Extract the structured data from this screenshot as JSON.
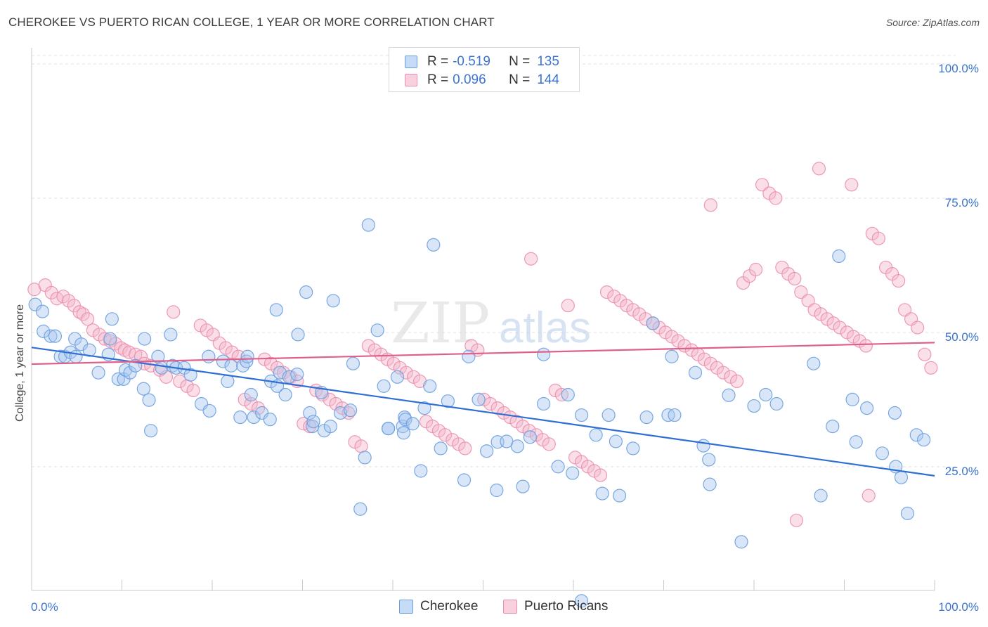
{
  "header": {
    "title": "CHEROKEE VS PUERTO RICAN COLLEGE, 1 YEAR OR MORE CORRELATION CHART",
    "source": "Source: ZipAtlas.com"
  },
  "watermark": {
    "part1": "ZIP",
    "part2": "atlas"
  },
  "legend_top": {
    "rows": [
      {
        "r_label": "R =",
        "r_value": "-0.519",
        "n_label": "N =",
        "n_value": "135"
      },
      {
        "r_label": "R =",
        "r_value": "0.096",
        "n_label": "N =",
        "n_value": "144"
      }
    ]
  },
  "legend_bottom": {
    "items": [
      "Cherokee",
      "Puerto Ricans"
    ]
  },
  "colors": {
    "cherokee_fill": "#a8c8f0",
    "cherokee_stroke": "#6a9ee0",
    "cherokee_line": "#2f6fd4",
    "pr_fill": "#f5b8cc",
    "pr_stroke": "#eb8fae",
    "pr_line": "#e0608c",
    "tick_blue": "#3a74d0",
    "grid": "#e2e2e2"
  },
  "chart_data": {
    "type": "scatter",
    "title": "CHEROKEE VS PUERTO RICAN COLLEGE, 1 YEAR OR MORE CORRELATION CHART",
    "xlabel": "",
    "ylabel": "College, 1 year or more",
    "xlim": [
      0,
      100
    ],
    "ylim": [
      0,
      105
    ],
    "x_tick_labels": [
      "0.0%",
      "100.0%"
    ],
    "y_ticks": [
      25,
      50,
      75,
      100
    ],
    "y_tick_labels": [
      "25.0%",
      "50.0%",
      "75.0%",
      "100.0%"
    ],
    "grid": true,
    "legend_position": "top-center",
    "series": [
      {
        "name": "Cherokee",
        "r": -0.519,
        "n": 135,
        "trend": {
          "x": [
            0,
            100
          ],
          "y": [
            48.0,
            24.1
          ]
        },
        "points": [
          [
            0.4,
            56
          ],
          [
            1.2,
            54.7
          ],
          [
            1.3,
            51
          ],
          [
            2.1,
            50.1
          ],
          [
            2.6,
            50.1
          ],
          [
            3.2,
            46.3
          ],
          [
            3.7,
            46.3
          ],
          [
            4.3,
            47.1
          ],
          [
            4.8,
            49.6
          ],
          [
            4.9,
            46.3
          ],
          [
            5.5,
            48.6
          ],
          [
            6.4,
            47.5
          ],
          [
            7.4,
            43.3
          ],
          [
            8.5,
            46.7
          ],
          [
            8.7,
            49.6
          ],
          [
            8.9,
            53.3
          ],
          [
            9.6,
            42.1
          ],
          [
            10.2,
            42.1
          ],
          [
            10.4,
            43.8
          ],
          [
            10.9,
            43.3
          ],
          [
            11.5,
            44.6
          ],
          [
            12.4,
            40.3
          ],
          [
            12.5,
            49.6
          ],
          [
            13,
            38.2
          ],
          [
            13.2,
            32.5
          ],
          [
            14,
            46.3
          ],
          [
            14.4,
            44.2
          ],
          [
            15.4,
            50.4
          ],
          [
            15.6,
            44.6
          ],
          [
            16,
            44.2
          ],
          [
            16.9,
            44.2
          ],
          [
            17.6,
            42.9
          ],
          [
            18.8,
            37.5
          ],
          [
            19.6,
            46.3
          ],
          [
            19.7,
            36.2
          ],
          [
            21.2,
            45.4
          ],
          [
            21.7,
            41.7
          ],
          [
            22.1,
            44.6
          ],
          [
            23.1,
            35
          ],
          [
            23.4,
            44.6
          ],
          [
            23.8,
            45.4
          ],
          [
            23.9,
            46.3
          ],
          [
            24.3,
            39.2
          ],
          [
            24.6,
            35
          ],
          [
            25.5,
            35.8
          ],
          [
            26.4,
            34.6
          ],
          [
            26.5,
            41.7
          ],
          [
            27.1,
            55
          ],
          [
            27.2,
            40.8
          ],
          [
            27.5,
            43.3
          ],
          [
            28.1,
            39.2
          ],
          [
            28.5,
            42.5
          ],
          [
            29.4,
            43
          ],
          [
            29.5,
            50.4
          ],
          [
            30.4,
            58.3
          ],
          [
            30.8,
            35.8
          ],
          [
            31.1,
            33.3
          ],
          [
            31.2,
            34.2
          ],
          [
            32.1,
            39.6
          ],
          [
            32.4,
            32.5
          ],
          [
            33.1,
            33.3
          ],
          [
            33.4,
            56.7
          ],
          [
            34.2,
            35.8
          ],
          [
            35.3,
            36.3
          ],
          [
            35.6,
            45
          ],
          [
            36.4,
            17.9
          ],
          [
            36.9,
            27.5
          ],
          [
            37.3,
            70.8
          ],
          [
            38.3,
            51.2
          ],
          [
            39,
            40.8
          ],
          [
            39.5,
            32.9
          ],
          [
            39.5,
            32.9
          ],
          [
            40.5,
            42.5
          ],
          [
            41.1,
            33.3
          ],
          [
            41.2,
            32.1
          ],
          [
            41.3,
            35
          ],
          [
            41.4,
            34.6
          ],
          [
            42.2,
            33.8
          ],
          [
            43.1,
            25
          ],
          [
            43.5,
            36.7
          ],
          [
            44.1,
            40.8
          ],
          [
            44.5,
            67.1
          ],
          [
            45.3,
            29.2
          ],
          [
            46.1,
            38
          ],
          [
            47.9,
            23.3
          ],
          [
            48.4,
            46.3
          ],
          [
            49.5,
            38.3
          ],
          [
            50.4,
            28.7
          ],
          [
            51.5,
            21.4
          ],
          [
            51.6,
            30.4
          ],
          [
            52.6,
            30.5
          ],
          [
            53.8,
            29.6
          ],
          [
            54.4,
            22.1
          ],
          [
            55.2,
            31.3
          ],
          [
            56.7,
            37.5
          ],
          [
            56.7,
            46.7
          ],
          [
            58.3,
            25.8
          ],
          [
            59.4,
            39.2
          ],
          [
            59.9,
            24.6
          ],
          [
            60.9,
            35.4
          ],
          [
            62.5,
            31.7
          ],
          [
            63.2,
            20.8
          ],
          [
            63.9,
            35.4
          ],
          [
            64.7,
            30.5
          ],
          [
            65.1,
            20.4
          ],
          [
            66.6,
            29.2
          ],
          [
            68.1,
            35
          ],
          [
            68.8,
            52.5
          ],
          [
            70.5,
            35.4
          ],
          [
            70.9,
            46.3
          ],
          [
            71.2,
            35.4
          ],
          [
            73.5,
            43.3
          ],
          [
            74.4,
            29.7
          ],
          [
            75,
            27.1
          ],
          [
            75.1,
            22.5
          ],
          [
            77.2,
            39.1
          ],
          [
            78.6,
            11.8
          ],
          [
            80,
            37.1
          ],
          [
            81.3,
            39.2
          ],
          [
            82.5,
            37.5
          ],
          [
            86.6,
            45
          ],
          [
            87.4,
            20.4
          ],
          [
            88.7,
            33.3
          ],
          [
            89.4,
            65
          ],
          [
            90.9,
            38.3
          ],
          [
            91.3,
            30.4
          ],
          [
            92.5,
            36.7
          ],
          [
            94.2,
            28.3
          ],
          [
            95.6,
            35.8
          ],
          [
            96.3,
            23.8
          ],
          [
            98,
            31.7
          ],
          [
            98.8,
            30.8
          ],
          [
            60.9,
            0.8
          ],
          [
            95.7,
            25.8
          ],
          [
            97,
            17.1
          ]
        ]
      },
      {
        "name": "Puerto Ricans",
        "r": 0.096,
        "n": 144,
        "trend": {
          "x": [
            0,
            100
          ],
          "y": [
            44.9,
            48.9
          ]
        },
        "points": [
          [
            0.3,
            58.8
          ],
          [
            1.5,
            59.6
          ],
          [
            2.2,
            58.2
          ],
          [
            2.8,
            57.1
          ],
          [
            3.5,
            57.5
          ],
          [
            4.1,
            56.7
          ],
          [
            4.7,
            55.8
          ],
          [
            5.3,
            54.6
          ],
          [
            5.7,
            54.2
          ],
          [
            6.2,
            53.3
          ],
          [
            6.8,
            51.2
          ],
          [
            7.5,
            50.4
          ],
          [
            8.1,
            49.6
          ],
          [
            8.7,
            49.2
          ],
          [
            9.3,
            48.7
          ],
          [
            9.9,
            47.9
          ],
          [
            10.3,
            47.5
          ],
          [
            10.8,
            47.1
          ],
          [
            11.5,
            46.7
          ],
          [
            12.1,
            46.3
          ],
          [
            12.5,
            45
          ],
          [
            13.2,
            44.6
          ],
          [
            14.2,
            43.8
          ],
          [
            14.9,
            42.5
          ],
          [
            15.7,
            54.6
          ],
          [
            16.4,
            41.7
          ],
          [
            17.2,
            40.8
          ],
          [
            17.9,
            40
          ],
          [
            18.7,
            52.1
          ],
          [
            19.4,
            51.2
          ],
          [
            20.1,
            50.4
          ],
          [
            20.8,
            48.8
          ],
          [
            21.5,
            47.9
          ],
          [
            22.2,
            47.1
          ],
          [
            22.9,
            46.3
          ],
          [
            23.6,
            38.3
          ],
          [
            24.3,
            37.5
          ],
          [
            25.1,
            36.7
          ],
          [
            25.8,
            45.8
          ],
          [
            26.5,
            45
          ],
          [
            27.2,
            44.2
          ],
          [
            27.9,
            43.3
          ],
          [
            28.7,
            42.5
          ],
          [
            29.4,
            41.7
          ],
          [
            30.1,
            33.8
          ],
          [
            30.8,
            33.3
          ],
          [
            31.5,
            40
          ],
          [
            32.2,
            39.2
          ],
          [
            33,
            38.3
          ],
          [
            33.7,
            37.5
          ],
          [
            34.4,
            36.7
          ],
          [
            35.1,
            35.8
          ],
          [
            35.8,
            30.4
          ],
          [
            36.5,
            29.6
          ],
          [
            37.3,
            48.3
          ],
          [
            38,
            47.5
          ],
          [
            38.7,
            46.7
          ],
          [
            39.4,
            45.8
          ],
          [
            40.1,
            45
          ],
          [
            40.8,
            44.2
          ],
          [
            41.5,
            43.3
          ],
          [
            42.3,
            42.5
          ],
          [
            43,
            41.7
          ],
          [
            43.7,
            34.2
          ],
          [
            44.4,
            33.3
          ],
          [
            45.1,
            32.5
          ],
          [
            45.8,
            31.7
          ],
          [
            46.6,
            30.8
          ],
          [
            47.3,
            30
          ],
          [
            48,
            29.2
          ],
          [
            48.7,
            48.3
          ],
          [
            49.4,
            47.5
          ],
          [
            50.1,
            38.3
          ],
          [
            50.8,
            37.5
          ],
          [
            51.6,
            36.7
          ],
          [
            52.3,
            35.8
          ],
          [
            53,
            35
          ],
          [
            53.7,
            34.2
          ],
          [
            54.4,
            33.3
          ],
          [
            55.1,
            32.5
          ],
          [
            55.9,
            31.7
          ],
          [
            56.6,
            30.8
          ],
          [
            57.3,
            30
          ],
          [
            58,
            40
          ],
          [
            58.7,
            39.2
          ],
          [
            59.4,
            55.8
          ],
          [
            60.2,
            27.5
          ],
          [
            60.9,
            26.7
          ],
          [
            61.6,
            25.8
          ],
          [
            62.3,
            25
          ],
          [
            63,
            24.2
          ],
          [
            63.7,
            58.3
          ],
          [
            64.5,
            57.5
          ],
          [
            65.2,
            56.7
          ],
          [
            65.9,
            55.8
          ],
          [
            66.6,
            55
          ],
          [
            67.3,
            54.2
          ],
          [
            68,
            53.3
          ],
          [
            68.8,
            52.5
          ],
          [
            69.5,
            51.7
          ],
          [
            70.2,
            50.8
          ],
          [
            70.9,
            50
          ],
          [
            71.6,
            49.2
          ],
          [
            72.3,
            48.3
          ],
          [
            73.1,
            47.5
          ],
          [
            73.8,
            46.7
          ],
          [
            74.5,
            45.8
          ],
          [
            75.2,
            45
          ],
          [
            75.9,
            44.2
          ],
          [
            76.6,
            43.3
          ],
          [
            77.4,
            42.5
          ],
          [
            78.1,
            41.7
          ],
          [
            78.8,
            60
          ],
          [
            79.5,
            61.3
          ],
          [
            80.2,
            62.5
          ],
          [
            80.9,
            78.3
          ],
          [
            81.7,
            76.7
          ],
          [
            82.4,
            75.8
          ],
          [
            83.1,
            62.9
          ],
          [
            83.8,
            61.7
          ],
          [
            84.5,
            60.8
          ],
          [
            85.2,
            58.3
          ],
          [
            86,
            56.7
          ],
          [
            86.7,
            55
          ],
          [
            87.4,
            54.2
          ],
          [
            88.1,
            53.3
          ],
          [
            88.8,
            52.5
          ],
          [
            89.5,
            51.7
          ],
          [
            90.3,
            50.8
          ],
          [
            91,
            50
          ],
          [
            91.7,
            49.2
          ],
          [
            92.4,
            48.3
          ],
          [
            93.1,
            69.2
          ],
          [
            93.8,
            68.3
          ],
          [
            94.6,
            62.9
          ],
          [
            95.3,
            61.7
          ],
          [
            96,
            60.4
          ],
          [
            96.7,
            55
          ],
          [
            97.4,
            53.3
          ],
          [
            98.1,
            51.7
          ],
          [
            98.9,
            46.7
          ],
          [
            99.6,
            44.2
          ],
          [
            87.2,
            81.3
          ],
          [
            90.8,
            78.3
          ],
          [
            92.7,
            20.4
          ],
          [
            84.7,
            15.8
          ],
          [
            75.2,
            74.5
          ],
          [
            55.3,
            64.5
          ]
        ]
      }
    ]
  }
}
